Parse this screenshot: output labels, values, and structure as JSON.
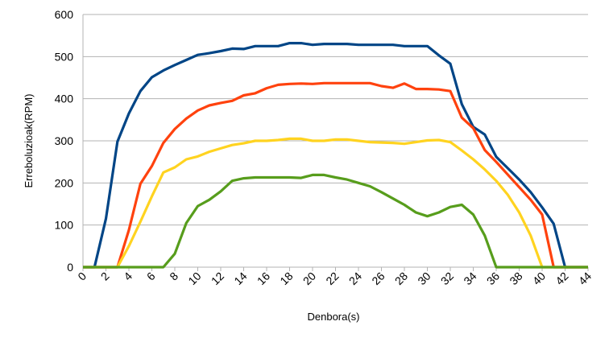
{
  "chart_data": {
    "type": "line",
    "xlabel": "Denbora(s)",
    "ylabel": "Erreboluzioak(RPM)",
    "xlim": [
      0,
      44
    ],
    "ylim": [
      0,
      600
    ],
    "x_ticks": [
      0,
      2,
      4,
      6,
      8,
      10,
      12,
      14,
      16,
      18,
      20,
      22,
      24,
      26,
      28,
      30,
      32,
      34,
      36,
      38,
      40,
      42,
      44
    ],
    "y_ticks": [
      0,
      100,
      200,
      300,
      400,
      500,
      600
    ],
    "grid": {
      "horizontal": true,
      "vertical": false
    },
    "legend": "none",
    "series": [
      {
        "color": "#004586",
        "points": [
          [
            0,
            0
          ],
          [
            1,
            0
          ],
          [
            2,
            115
          ],
          [
            3,
            298
          ],
          [
            4,
            365
          ],
          [
            5,
            418
          ],
          [
            6,
            451
          ],
          [
            7,
            467
          ],
          [
            8,
            480
          ],
          [
            9,
            492
          ],
          [
            10,
            504
          ],
          [
            11,
            508
          ],
          [
            12,
            513
          ],
          [
            13,
            519
          ],
          [
            14,
            518
          ],
          [
            15,
            525
          ],
          [
            16,
            525
          ],
          [
            17,
            525
          ],
          [
            18,
            532
          ],
          [
            19,
            532
          ],
          [
            20,
            528
          ],
          [
            21,
            530
          ],
          [
            22,
            530
          ],
          [
            23,
            530
          ],
          [
            24,
            528
          ],
          [
            25,
            528
          ],
          [
            26,
            528
          ],
          [
            27,
            528
          ],
          [
            28,
            525
          ],
          [
            29,
            525
          ],
          [
            30,
            525
          ],
          [
            31,
            503
          ],
          [
            32,
            483
          ],
          [
            33,
            387
          ],
          [
            34,
            333
          ],
          [
            35,
            315
          ],
          [
            36,
            262
          ],
          [
            37,
            235
          ],
          [
            38,
            208
          ],
          [
            39,
            178
          ],
          [
            40,
            142
          ],
          [
            41,
            103
          ],
          [
            42,
            0
          ],
          [
            43,
            0
          ],
          [
            44,
            0
          ]
        ]
      },
      {
        "color": "#ff420e",
        "points": [
          [
            0,
            0
          ],
          [
            1,
            0
          ],
          [
            2,
            0
          ],
          [
            3,
            0
          ],
          [
            4,
            88
          ],
          [
            5,
            198
          ],
          [
            6,
            240
          ],
          [
            7,
            295
          ],
          [
            8,
            328
          ],
          [
            9,
            353
          ],
          [
            10,
            372
          ],
          [
            11,
            384
          ],
          [
            12,
            390
          ],
          [
            13,
            395
          ],
          [
            14,
            408
          ],
          [
            15,
            413
          ],
          [
            16,
            425
          ],
          [
            17,
            433
          ],
          [
            18,
            435
          ],
          [
            19,
            436
          ],
          [
            20,
            435
          ],
          [
            21,
            437
          ],
          [
            22,
            437
          ],
          [
            23,
            437
          ],
          [
            24,
            437
          ],
          [
            25,
            437
          ],
          [
            26,
            430
          ],
          [
            27,
            426
          ],
          [
            28,
            436
          ],
          [
            29,
            423
          ],
          [
            30,
            423
          ],
          [
            31,
            422
          ],
          [
            32,
            418
          ],
          [
            33,
            355
          ],
          [
            34,
            330
          ],
          [
            35,
            278
          ],
          [
            36,
            250
          ],
          [
            37,
            220
          ],
          [
            38,
            190
          ],
          [
            39,
            160
          ],
          [
            40,
            125
          ],
          [
            41,
            0
          ],
          [
            42,
            0
          ],
          [
            43,
            0
          ],
          [
            44,
            0
          ]
        ]
      },
      {
        "color": "#ffd320",
        "points": [
          [
            0,
            0
          ],
          [
            1,
            0
          ],
          [
            2,
            0
          ],
          [
            3,
            0
          ],
          [
            4,
            50
          ],
          [
            5,
            108
          ],
          [
            6,
            168
          ],
          [
            7,
            225
          ],
          [
            8,
            237
          ],
          [
            9,
            256
          ],
          [
            10,
            263
          ],
          [
            11,
            274
          ],
          [
            12,
            282
          ],
          [
            13,
            290
          ],
          [
            14,
            294
          ],
          [
            15,
            300
          ],
          [
            16,
            300
          ],
          [
            17,
            302
          ],
          [
            18,
            305
          ],
          [
            19,
            305
          ],
          [
            20,
            300
          ],
          [
            21,
            300
          ],
          [
            22,
            303
          ],
          [
            23,
            303
          ],
          [
            24,
            300
          ],
          [
            25,
            297
          ],
          [
            26,
            296
          ],
          [
            27,
            295
          ],
          [
            28,
            293
          ],
          [
            29,
            297
          ],
          [
            30,
            301
          ],
          [
            31,
            302
          ],
          [
            32,
            297
          ],
          [
            33,
            277
          ],
          [
            34,
            256
          ],
          [
            35,
            232
          ],
          [
            36,
            205
          ],
          [
            37,
            172
          ],
          [
            38,
            130
          ],
          [
            39,
            75
          ],
          [
            40,
            0
          ],
          [
            41,
            0
          ],
          [
            42,
            0
          ],
          [
            43,
            0
          ],
          [
            44,
            0
          ]
        ]
      },
      {
        "color": "#579d1c",
        "points": [
          [
            0,
            0
          ],
          [
            1,
            0
          ],
          [
            2,
            0
          ],
          [
            3,
            0
          ],
          [
            4,
            0
          ],
          [
            5,
            0
          ],
          [
            6,
            0
          ],
          [
            7,
            0
          ],
          [
            8,
            32
          ],
          [
            9,
            105
          ],
          [
            10,
            145
          ],
          [
            11,
            160
          ],
          [
            12,
            180
          ],
          [
            13,
            205
          ],
          [
            14,
            211
          ],
          [
            15,
            213
          ],
          [
            16,
            213
          ],
          [
            17,
            213
          ],
          [
            18,
            213
          ],
          [
            19,
            212
          ],
          [
            20,
            219
          ],
          [
            21,
            219
          ],
          [
            22,
            213
          ],
          [
            23,
            208
          ],
          [
            24,
            200
          ],
          [
            25,
            192
          ],
          [
            26,
            178
          ],
          [
            27,
            163
          ],
          [
            28,
            148
          ],
          [
            29,
            130
          ],
          [
            30,
            121
          ],
          [
            31,
            130
          ],
          [
            32,
            143
          ],
          [
            33,
            148
          ],
          [
            34,
            125
          ],
          [
            35,
            75
          ],
          [
            36,
            0
          ],
          [
            37,
            0
          ],
          [
            38,
            0
          ],
          [
            39,
            0
          ],
          [
            40,
            0
          ],
          [
            41,
            0
          ],
          [
            42,
            0
          ],
          [
            43,
            0
          ],
          [
            44,
            0
          ]
        ]
      }
    ]
  }
}
